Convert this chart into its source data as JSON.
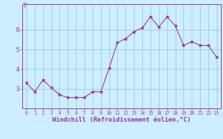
{
  "x": [
    0,
    1,
    2,
    3,
    4,
    5,
    6,
    7,
    8,
    9,
    10,
    11,
    12,
    13,
    14,
    15,
    16,
    17,
    18,
    19,
    20,
    21,
    22,
    23
  ],
  "y": [
    3.3,
    2.85,
    3.45,
    3.05,
    2.7,
    2.55,
    2.55,
    2.55,
    2.85,
    2.85,
    4.05,
    5.35,
    5.55,
    5.9,
    6.1,
    6.65,
    6.15,
    6.65,
    6.2,
    5.2,
    5.4,
    5.2,
    5.2,
    4.6
  ],
  "line_color": "#993399",
  "marker": "*",
  "marker_size": 3.5,
  "bg_color": "#cceeff",
  "grid_color": "#99cccc",
  "axis_color": "#993399",
  "tick_color": "#993399",
  "xlabel": "Windchill (Refroidissement éolien,°C)",
  "ylim": [
    2.0,
    7.3
  ],
  "yticks": [
    3,
    4,
    5,
    6
  ],
  "ytick_labels": [
    "3",
    "4",
    "5",
    "6"
  ],
  "top_label": "7",
  "xlim_min": -0.5,
  "xlim_max": 23.5
}
